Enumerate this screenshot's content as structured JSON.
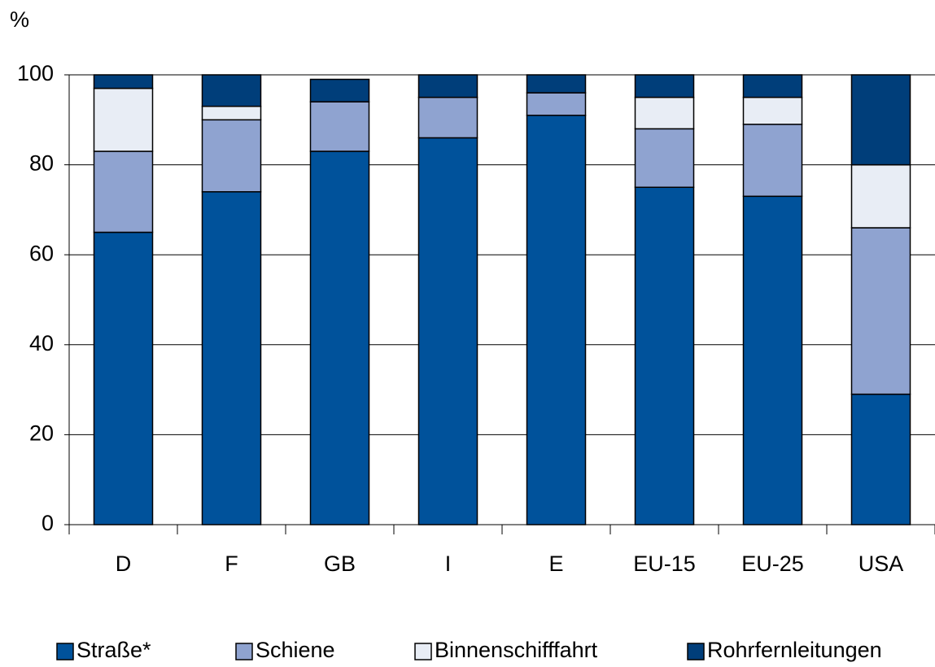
{
  "chart_data": {
    "type": "stacked_bar",
    "ylabel": "%",
    "categories": [
      "D",
      "F",
      "GB",
      "I",
      "E",
      "EU-15",
      "EU-25",
      "USA"
    ],
    "series": [
      {
        "name": "Straße*",
        "color": "#00529b",
        "values": [
          65,
          74,
          83,
          86,
          91,
          75,
          73,
          29
        ]
      },
      {
        "name": "Schiene",
        "color": "#8fa3d0",
        "values": [
          18,
          16,
          11,
          9,
          5,
          13,
          16,
          37
        ]
      },
      {
        "name": "Binnenschifffahrt",
        "color": "#e8edf5",
        "values": [
          14,
          3,
          0,
          0,
          0,
          7,
          6,
          14
        ]
      },
      {
        "name": "Rohrfernleitungen",
        "color": "#003e7a",
        "values": [
          3,
          7,
          5,
          5,
          4,
          5,
          5,
          20
        ]
      }
    ],
    "ylim": [
      0,
      100
    ],
    "yticks": [
      0,
      20,
      40,
      60,
      80,
      100
    ],
    "grid": true,
    "legend": "bottom"
  }
}
